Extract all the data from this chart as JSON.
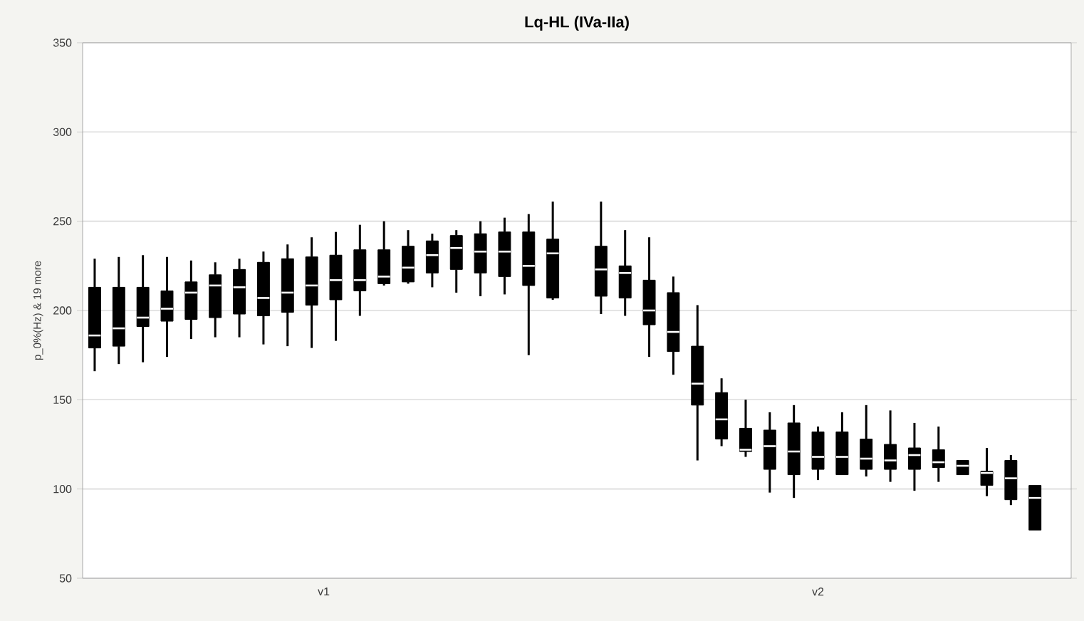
{
  "chart_data": {
    "type": "box",
    "title": "Lq-HL (IVa-IIa)",
    "ylabel": "p_0%(Hz) & 19 more",
    "categories": [
      null,
      null,
      null,
      null,
      null,
      null,
      null,
      null,
      null,
      null,
      null,
      null,
      null,
      null,
      null,
      null,
      null,
      null,
      null,
      null,
      null,
      null,
      null,
      null,
      null,
      null,
      null,
      null,
      null,
      null,
      null,
      null,
      null,
      null,
      null,
      null,
      null,
      null,
      null,
      null,
      null
    ],
    "annotations": [
      "v1",
      "v2"
    ],
    "color": "#000000",
    "boxes": [
      {
        "low": 166,
        "q1": 179,
        "median": 186,
        "q3": 213,
        "high": 229
      },
      {
        "low": 170,
        "q1": 180,
        "median": 190,
        "q3": 213,
        "high": 230
      },
      {
        "low": 171,
        "q1": 191,
        "median": 196,
        "q3": 213,
        "high": 231
      },
      {
        "low": 174,
        "q1": 194,
        "median": 201,
        "q3": 211,
        "high": 230
      },
      {
        "low": 184,
        "q1": 195,
        "median": 210,
        "q3": 216,
        "high": 228
      },
      {
        "low": 185,
        "q1": 196,
        "median": 214,
        "q3": 220,
        "high": 227
      },
      {
        "low": 185,
        "q1": 198,
        "median": 213,
        "q3": 223,
        "high": 229
      },
      {
        "low": 181,
        "q1": 197,
        "median": 207,
        "q3": 227,
        "high": 233
      },
      {
        "low": 180,
        "q1": 199,
        "median": 210,
        "q3": 229,
        "high": 237
      },
      {
        "low": 179,
        "q1": 203,
        "median": 214,
        "q3": 230,
        "high": 241
      },
      {
        "low": 183,
        "q1": 206,
        "median": 217,
        "q3": 231,
        "high": 244
      },
      {
        "low": 197,
        "q1": 211,
        "median": 217,
        "q3": 234,
        "high": 248
      },
      {
        "low": 214,
        "q1": 215,
        "median": 219,
        "q3": 234,
        "high": 250
      },
      {
        "low": 215,
        "q1": 216,
        "median": 224,
        "q3": 236,
        "high": 245
      },
      {
        "low": 213,
        "q1": 221,
        "median": 231,
        "q3": 239,
        "high": 243
      },
      {
        "low": 210,
        "q1": 223,
        "median": 235,
        "q3": 242,
        "high": 245
      },
      {
        "low": 208,
        "q1": 221,
        "median": 233,
        "q3": 243,
        "high": 250
      },
      {
        "low": 209,
        "q1": 219,
        "median": 233,
        "q3": 244,
        "high": 252
      },
      {
        "low": 175,
        "q1": 214,
        "median": 225,
        "q3": 244,
        "high": 254
      },
      {
        "low": 206,
        "q1": 207,
        "median": 232,
        "q3": 240,
        "high": 261
      },
      null,
      {
        "low": 198,
        "q1": 208,
        "median": 223,
        "q3": 236,
        "high": 261
      },
      {
        "low": 197,
        "q1": 207,
        "median": 221,
        "q3": 225,
        "high": 245
      },
      {
        "low": 174,
        "q1": 192,
        "median": 200,
        "q3": 217,
        "high": 241
      },
      {
        "low": 164,
        "q1": 177,
        "median": 188,
        "q3": 210,
        "high": 219
      },
      {
        "low": 116,
        "q1": 147,
        "median": 159,
        "q3": 180,
        "high": 203
      },
      {
        "low": 124,
        "q1": 128,
        "median": 139,
        "q3": 154,
        "high": 162
      },
      {
        "low": 118,
        "q1": 121,
        "median": 122,
        "q3": 134,
        "high": 150
      },
      {
        "low": 98,
        "q1": 111,
        "median": 124,
        "q3": 133,
        "high": 143
      },
      {
        "low": 95,
        "q1": 108,
        "median": 121,
        "q3": 137,
        "high": 147
      },
      {
        "low": 105,
        "q1": 111,
        "median": 118,
        "q3": 132,
        "high": 135
      },
      {
        "low": 108,
        "q1": 108,
        "median": 118,
        "q3": 132,
        "high": 143
      },
      {
        "low": 107,
        "q1": 111,
        "median": 117,
        "q3": 128,
        "high": 147
      },
      {
        "low": 104,
        "q1": 111,
        "median": 116,
        "q3": 125,
        "high": 144
      },
      {
        "low": 99,
        "q1": 111,
        "median": 119,
        "q3": 123,
        "high": 137
      },
      {
        "low": 104,
        "q1": 112,
        "median": 115,
        "q3": 122,
        "high": 135
      },
      {
        "low": 108,
        "q1": 108,
        "median": 113,
        "q3": 116,
        "high": 116
      },
      {
        "low": 96,
        "q1": 102,
        "median": 109,
        "q3": 110,
        "high": 123
      },
      {
        "low": 91,
        "q1": 94,
        "median": 106,
        "q3": 116,
        "high": 119
      },
      {
        "low": 77,
        "q1": 77,
        "median": 95,
        "q3": 102,
        "high": 102
      },
      null
    ],
    "ylim": [
      50,
      350
    ],
    "yticks": [
      50,
      100,
      150,
      200,
      250,
      300,
      350
    ],
    "grid": "y"
  }
}
